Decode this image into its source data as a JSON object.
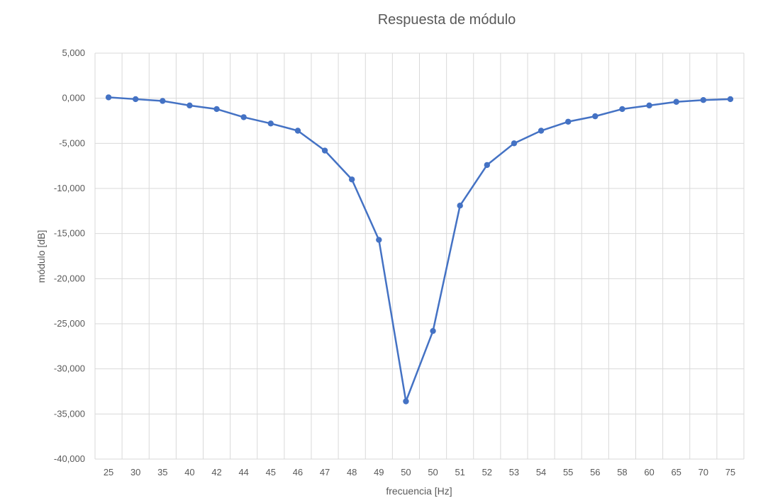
{
  "chart_data": {
    "type": "line",
    "title": "Respuesta de módulo",
    "xlabel": "frecuencia [Hz]",
    "ylabel": "módulo [dB]",
    "categories": [
      "25",
      "30",
      "35",
      "40",
      "42",
      "44",
      "45",
      "46",
      "47",
      "48",
      "49",
      "50",
      "50",
      "51",
      "52",
      "53",
      "54",
      "55",
      "56",
      "58",
      "60",
      "65",
      "70",
      "75"
    ],
    "series": [
      {
        "values": [
          0.1,
          -0.1,
          -0.3,
          -0.8,
          -1.2,
          -2.1,
          -2.8,
          -3.6,
          -5.8,
          -9.0,
          -15.7,
          -33.6,
          -25.8,
          -11.9,
          -7.4,
          -5.0,
          -3.6,
          -2.6,
          -2.0,
          -1.2,
          -0.8,
          -0.4,
          -0.2,
          -0.1
        ],
        "color": "#4472c4"
      }
    ],
    "ylim": [
      -40,
      5
    ],
    "yticks": [
      "5,000",
      "0,000",
      "-5,000",
      "-10,000",
      "-15,000",
      "-20,000",
      "-25,000",
      "-30,000",
      "-35,000",
      "-40,000"
    ],
    "grid": true,
    "legend": "none"
  }
}
